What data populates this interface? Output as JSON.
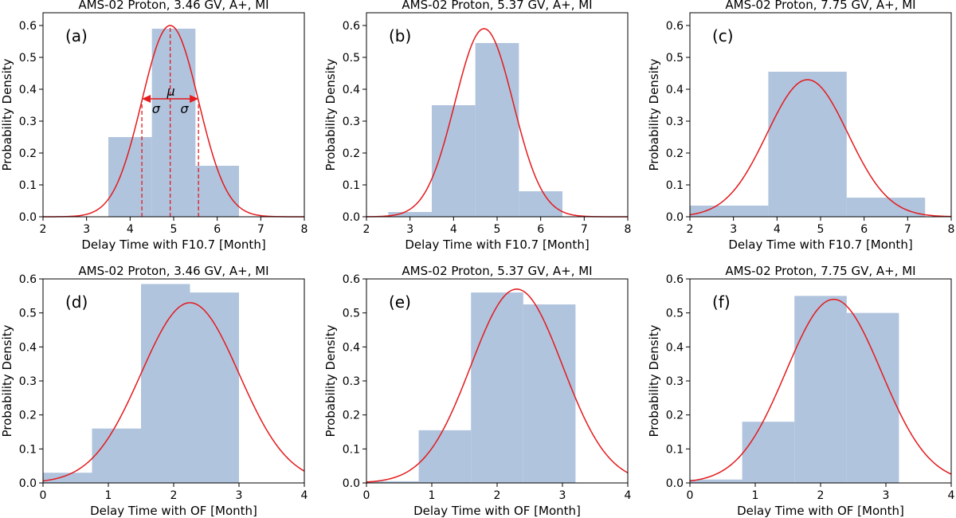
{
  "colors": {
    "bar_fill": "#b0c4de",
    "curve": "#e41a1c",
    "axis": "#000000",
    "annotation": "#e41a1c"
  },
  "chart_data": [
    {
      "type": "bar",
      "panel_label": "(a)",
      "title": "AMS-02 Proton, 3.46 GV, A+, MI",
      "xlabel": "Delay Time with F10.7 [Month]",
      "ylabel": "Probability Density",
      "xlim": [
        2,
        8
      ],
      "ylim": [
        0,
        0.64
      ],
      "xticks": [
        2,
        3,
        4,
        5,
        6,
        7,
        8
      ],
      "yticks": [
        0.0,
        0.1,
        0.2,
        0.3,
        0.4,
        0.5,
        0.6
      ],
      "bins": [
        {
          "x0": 3.5,
          "x1": 4.5,
          "value": 0.25
        },
        {
          "x0": 4.5,
          "x1": 5.5,
          "value": 0.59
        },
        {
          "x0": 5.5,
          "x1": 6.5,
          "value": 0.16
        }
      ],
      "fit": {
        "type": "gaussian",
        "mu": 4.92,
        "sigma": 0.65,
        "peak": 0.6
      },
      "annotation": {
        "mu_label": "μ",
        "sigma_label": "σ"
      }
    },
    {
      "type": "bar",
      "panel_label": "(b)",
      "title": "AMS-02 Proton, 5.37 GV, A+, MI",
      "xlabel": "Delay Time with F10.7 [Month]",
      "ylabel": "Probability Density",
      "xlim": [
        2,
        8
      ],
      "ylim": [
        0,
        0.64
      ],
      "xticks": [
        2,
        3,
        4,
        5,
        6,
        7,
        8
      ],
      "yticks": [
        0.0,
        0.1,
        0.2,
        0.3,
        0.4,
        0.5,
        0.6
      ],
      "bins": [
        {
          "x0": 2.5,
          "x1": 3.5,
          "value": 0.015
        },
        {
          "x0": 3.5,
          "x1": 4.5,
          "value": 0.35
        },
        {
          "x0": 4.5,
          "x1": 5.5,
          "value": 0.545
        },
        {
          "x0": 5.5,
          "x1": 6.5,
          "value": 0.08
        }
      ],
      "fit": {
        "type": "gaussian",
        "mu": 4.7,
        "sigma": 0.67,
        "peak": 0.59
      }
    },
    {
      "type": "bar",
      "panel_label": "(c)",
      "title": "AMS-02 Proton, 7.75 GV, A+, MI",
      "xlabel": "Delay Time with F10.7 [Month]",
      "ylabel": "Probability Density",
      "xlim": [
        2,
        8
      ],
      "ylim": [
        0,
        0.64
      ],
      "xticks": [
        2,
        3,
        4,
        5,
        6,
        7,
        8
      ],
      "yticks": [
        0.0,
        0.1,
        0.2,
        0.3,
        0.4,
        0.5,
        0.6
      ],
      "bins": [
        {
          "x0": 2.0,
          "x1": 3.8,
          "value": 0.035
        },
        {
          "x0": 3.8,
          "x1": 5.6,
          "value": 0.455
        },
        {
          "x0": 5.6,
          "x1": 7.4,
          "value": 0.06
        }
      ],
      "fit": {
        "type": "gaussian",
        "mu": 4.7,
        "sigma": 0.93,
        "peak": 0.43
      }
    },
    {
      "type": "bar",
      "panel_label": "(d)",
      "title": "AMS-02 Proton, 3.46 GV, A+, MI",
      "xlabel": "Delay Time with OF [Month]",
      "ylabel": "Probability Density",
      "xlim": [
        0,
        4
      ],
      "ylim": [
        0,
        0.6
      ],
      "xticks": [
        0,
        1,
        2,
        3,
        4
      ],
      "yticks": [
        0.0,
        0.1,
        0.2,
        0.3,
        0.4,
        0.5,
        0.6
      ],
      "bins": [
        {
          "x0": 0.0,
          "x1": 0.75,
          "value": 0.03
        },
        {
          "x0": 0.75,
          "x1": 1.5,
          "value": 0.16
        },
        {
          "x0": 1.5,
          "x1": 2.25,
          "value": 0.585
        },
        {
          "x0": 2.25,
          "x1": 3.0,
          "value": 0.56
        }
      ],
      "fit": {
        "type": "gaussian",
        "mu": 2.25,
        "sigma": 0.75,
        "peak": 0.53
      }
    },
    {
      "type": "bar",
      "panel_label": "(e)",
      "title": "AMS-02 Proton, 5.37 GV, A+, MI",
      "xlabel": "Delay Time with OF [Month]",
      "ylabel": "Probability Density",
      "xlim": [
        0,
        4
      ],
      "ylim": [
        0,
        0.6
      ],
      "xticks": [
        0,
        1,
        2,
        3,
        4
      ],
      "yticks": [
        0.0,
        0.1,
        0.2,
        0.3,
        0.4,
        0.5,
        0.6
      ],
      "bins": [
        {
          "x0": 0.0,
          "x1": 0.8,
          "value": 0.005
        },
        {
          "x0": 0.8,
          "x1": 1.6,
          "value": 0.155
        },
        {
          "x0": 1.6,
          "x1": 2.4,
          "value": 0.56
        },
        {
          "x0": 2.4,
          "x1": 3.2,
          "value": 0.525
        }
      ],
      "fit": {
        "type": "gaussian",
        "mu": 2.3,
        "sigma": 0.7,
        "peak": 0.57
      }
    },
    {
      "type": "bar",
      "panel_label": "(f)",
      "title": "AMS-02 Proton, 7.75 GV, A+, MI",
      "xlabel": "Delay Time with OF [Month]",
      "ylabel": "Probability Density",
      "xlim": [
        0,
        4
      ],
      "ylim": [
        0,
        0.6
      ],
      "xticks": [
        0,
        1,
        2,
        3,
        4
      ],
      "yticks": [
        0.0,
        0.1,
        0.2,
        0.3,
        0.4,
        0.5,
        0.6
      ],
      "bins": [
        {
          "x0": 0.0,
          "x1": 0.8,
          "value": 0.01
        },
        {
          "x0": 0.8,
          "x1": 1.6,
          "value": 0.18
        },
        {
          "x0": 1.6,
          "x1": 2.4,
          "value": 0.55
        },
        {
          "x0": 2.4,
          "x1": 3.2,
          "value": 0.5
        }
      ],
      "fit": {
        "type": "gaussian",
        "mu": 2.2,
        "sigma": 0.73,
        "peak": 0.54
      }
    }
  ]
}
